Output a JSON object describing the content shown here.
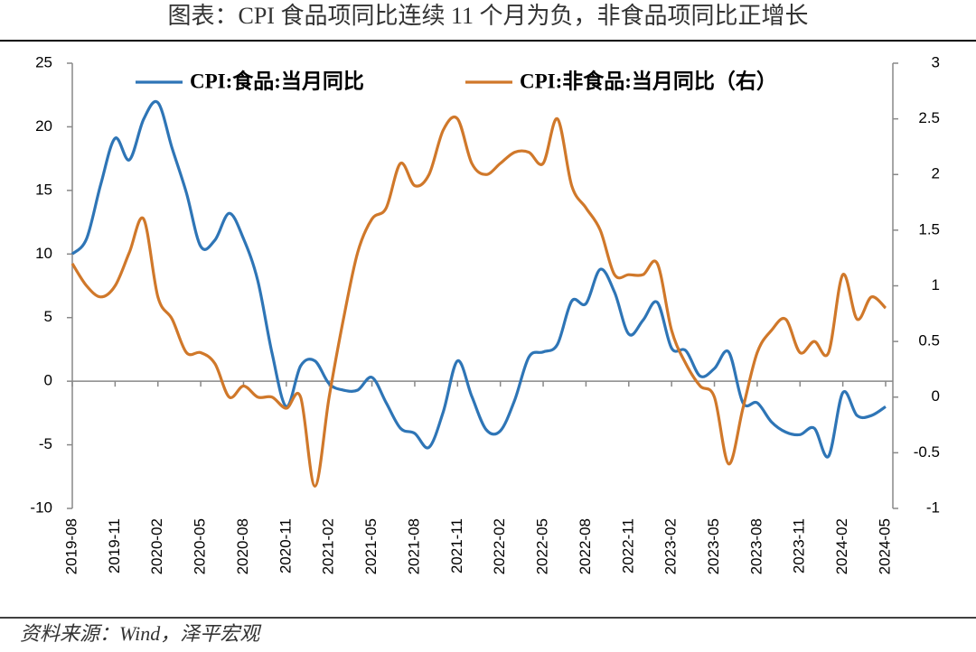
{
  "chart_data": {
    "type": "line",
    "title": "图表：CPI 食品项同比连续 11 个月为负，非食品项同比正增长",
    "source": "资料来源：Wind，泽平宏观",
    "categories": [
      "2019-08",
      null,
      null,
      "2019-11",
      null,
      null,
      "2020-02",
      null,
      null,
      "2020-05",
      null,
      null,
      "2020-08",
      null,
      null,
      "2020-11",
      null,
      null,
      "2021-02",
      null,
      null,
      "2021-05",
      null,
      null,
      "2021-08",
      null,
      null,
      "2021-11",
      null,
      null,
      "2022-02",
      null,
      null,
      "2022-05",
      null,
      null,
      "2022-08",
      null,
      null,
      "2022-11",
      null,
      null,
      "2023-02",
      null,
      null,
      "2023-05",
      null,
      null,
      "2023-08",
      null,
      null,
      "2023-11",
      null,
      null,
      "2024-02",
      null,
      null,
      "2024-05"
    ],
    "series": [
      {
        "name": "CPI:食品:当月同比",
        "color": "#2e75b6",
        "axis": "y",
        "values": [
          10.0,
          11.2,
          15.5,
          19.1,
          17.4,
          20.6,
          21.9,
          18.3,
          14.8,
          10.6,
          11.1,
          13.2,
          11.2,
          7.9,
          2.2,
          -2.0,
          1.2,
          1.6,
          -0.2,
          -0.7,
          -0.7,
          0.3,
          -1.7,
          -3.7,
          -4.1,
          -5.2,
          -2.4,
          1.6,
          -1.2,
          -3.8,
          -3.9,
          -1.5,
          1.9,
          2.3,
          2.9,
          6.3,
          6.1,
          8.8,
          7.0,
          3.7,
          4.8,
          6.2,
          2.6,
          2.4,
          0.4,
          1.0,
          2.3,
          -1.7,
          -1.7,
          -3.2,
          -4.0,
          -4.2,
          -3.7,
          -5.9,
          -0.9,
          -2.7,
          -2.7,
          -2.0
        ]
      },
      {
        "name": "CPI:非食品:当月同比（右）",
        "color": "#d0782a",
        "axis": "y2",
        "values": [
          1.2,
          1.0,
          0.9,
          1.0,
          1.3,
          1.6,
          0.9,
          0.7,
          0.4,
          0.4,
          0.3,
          0.0,
          0.1,
          0.0,
          0.0,
          -0.1,
          0.0,
          -0.8,
          0.0,
          0.7,
          1.3,
          1.6,
          1.7,
          2.1,
          1.9,
          2.0,
          2.4,
          2.5,
          2.1,
          2.0,
          2.1,
          2.2,
          2.2,
          2.1,
          2.5,
          1.9,
          1.7,
          1.5,
          1.1,
          1.1,
          1.1,
          1.2,
          0.6,
          0.3,
          0.1,
          0.0,
          -0.6,
          -0.1,
          0.4,
          0.6,
          0.7,
          0.4,
          0.5,
          0.4,
          1.1,
          0.7,
          0.9,
          0.8
        ]
      }
    ],
    "ylim": [
      -10,
      25
    ],
    "yticks": [
      -10,
      -5,
      0,
      5,
      10,
      15,
      20,
      25
    ],
    "y2lim": [
      -1,
      3
    ],
    "y2ticks": [
      -1,
      -0.5,
      0,
      0.5,
      1,
      1.5,
      2,
      2.5,
      3
    ],
    "legend": "top"
  }
}
